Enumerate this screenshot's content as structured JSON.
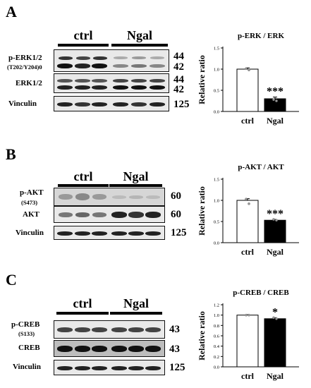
{
  "panels": [
    {
      "letter": "A",
      "groups": [
        "ctrl",
        "Ngal"
      ],
      "blots": [
        {
          "label": "p-ERK1/2",
          "sublabel": "(T202/Y204)0",
          "mw": [
            "44",
            "42"
          ]
        },
        {
          "label": "ERK1/2",
          "sublabel": "",
          "mw": [
            "44",
            "42"
          ]
        },
        {
          "label": "Vinculin",
          "sublabel": "",
          "mw": [
            "125"
          ]
        }
      ]
    },
    {
      "letter": "B",
      "groups": [
        "ctrl",
        "Ngal"
      ],
      "blots": [
        {
          "label": "p-AKT",
          "sublabel": "(S473)",
          "mw": [
            "60"
          ]
        },
        {
          "label": "AKT",
          "sublabel": "",
          "mw": [
            "60"
          ]
        },
        {
          "label": "Vinculin",
          "sublabel": "",
          "mw": [
            "125"
          ]
        }
      ]
    },
    {
      "letter": "C",
      "groups": [
        "ctrl",
        "Ngal"
      ],
      "blots": [
        {
          "label": "p-CREB",
          "sublabel": "(S133)",
          "mw": [
            "43"
          ]
        },
        {
          "label": "CREB",
          "sublabel": "",
          "mw": [
            "43"
          ]
        },
        {
          "label": "Vinculin",
          "sublabel": "",
          "mw": [
            "125"
          ]
        }
      ]
    }
  ],
  "chart_data": [
    {
      "type": "bar",
      "title": "p-ERK / ERK",
      "ylabel": "Relative ratio",
      "categories": [
        "ctrl",
        "Ngal"
      ],
      "values": [
        1.0,
        0.3
      ],
      "errors": [
        0.03,
        0.04
      ],
      "points": [
        [
          1.01,
          0.98
        ],
        [
          0.28,
          0.25
        ]
      ],
      "bar_colors": [
        "#ffffff",
        "#000000"
      ],
      "significance": [
        "",
        "***"
      ],
      "ylim": [
        0,
        1.5
      ],
      "yticks": [
        "0.0",
        "0.5",
        "1.0",
        "1.5"
      ]
    },
    {
      "type": "bar",
      "title": "p-AKT / AKT",
      "ylabel": "Relative ratio",
      "categories": [
        "ctrl",
        "Ngal"
      ],
      "values": [
        1.0,
        0.53
      ],
      "errors": [
        0.04,
        0.02
      ],
      "points": [
        [
          1.03,
          0.92
        ],
        [
          0.55,
          0.53
        ]
      ],
      "bar_colors": [
        "#ffffff",
        "#000000"
      ],
      "significance": [
        "",
        "***"
      ],
      "ylim": [
        0,
        1.5
      ],
      "yticks": [
        "0.0",
        "0.5",
        "1.0",
        "1.5"
      ]
    },
    {
      "type": "bar",
      "title": "p-CREB / CREB",
      "ylabel": "Relative ratio",
      "categories": [
        "ctrl",
        "Ngal"
      ],
      "values": [
        1.0,
        0.93
      ],
      "errors": [
        0.01,
        0.02
      ],
      "points": [
        [
          1.0,
          1.0
        ],
        [
          0.95,
          0.93
        ]
      ],
      "bar_colors": [
        "#ffffff",
        "#000000"
      ],
      "significance": [
        "",
        "*"
      ],
      "ylim": [
        0,
        1.2
      ],
      "yticks": [
        "0.0",
        "0.2",
        "0.4",
        "0.6",
        "0.8",
        "1.0",
        "1.2"
      ]
    }
  ]
}
